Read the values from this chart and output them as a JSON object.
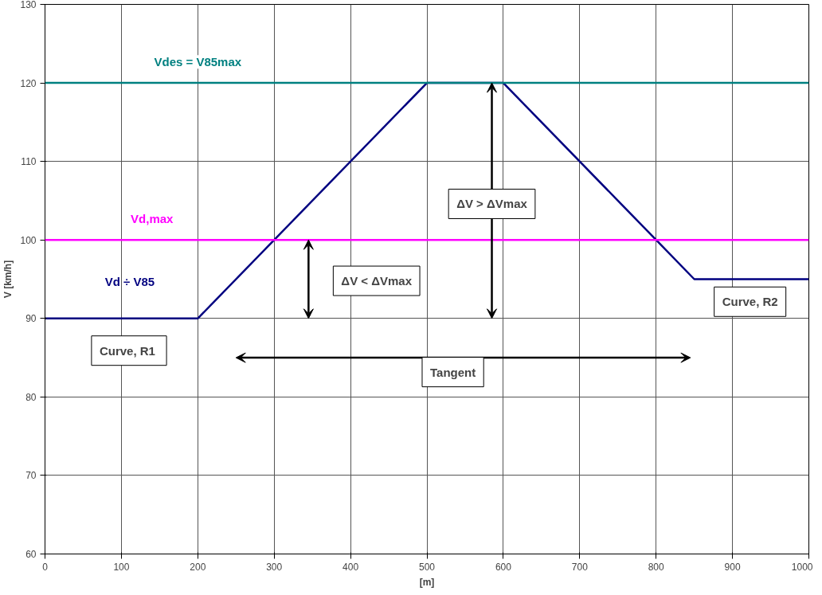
{
  "chart_data": {
    "type": "line",
    "xlabel": "[m]",
    "ylabel": "V [km/h]",
    "x": [
      0,
      200,
      500,
      600,
      800,
      850,
      1000
    ],
    "series": [
      {
        "name": "Vd ÷ V85",
        "color": "#000080",
        "values": [
          90,
          90,
          120,
          120,
          100,
          95,
          95
        ]
      }
    ],
    "xlim": [
      0,
      1000
    ],
    "ylim": [
      60,
      130
    ],
    "xticks": [
      0,
      100,
      200,
      300,
      400,
      500,
      600,
      700,
      800,
      900,
      1000
    ],
    "yticks": [
      60,
      70,
      80,
      90,
      100,
      110,
      120,
      130
    ],
    "ref_lines": [
      {
        "axis": "y",
        "value": 120,
        "label": "Vdes = V85max",
        "color": "#008080"
      },
      {
        "axis": "y",
        "value": 100,
        "label": "Vd,max",
        "color": "#ff00ff"
      }
    ],
    "annotations": [
      "Curve,  R1",
      "Tangent",
      "Curve, R2",
      "ΔV < ΔVmax",
      "ΔV > ΔVmax"
    ],
    "grid": true,
    "marker": "none",
    "line_style": "solid"
  }
}
